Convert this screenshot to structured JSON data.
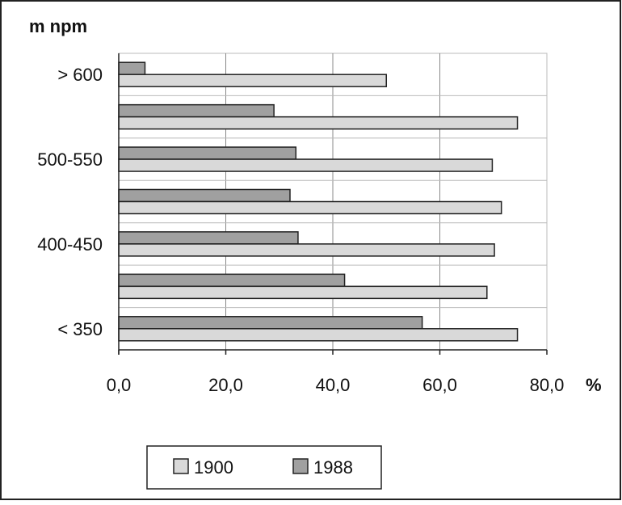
{
  "chart_data": {
    "type": "bar",
    "orientation": "horizontal",
    "ylabel": "m npm",
    "xlabel_unit": "%",
    "categories": [
      "< 350",
      "",
      "400-450",
      "",
      "500-550",
      "",
      "> 600"
    ],
    "category_labels_shown": [
      "< 350",
      "400-450",
      "500-550",
      "> 600"
    ],
    "series": [
      {
        "name": "1900",
        "values": [
          74.5,
          68.8,
          70.2,
          71.5,
          69.8,
          74.5,
          50.0
        ],
        "color": "#d9d9d9"
      },
      {
        "name": "1988",
        "values": [
          56.7,
          42.2,
          33.5,
          32.0,
          33.1,
          29.0,
          4.9
        ],
        "color": "#a0a0a0"
      }
    ],
    "xlim": [
      0,
      80
    ],
    "xticks": [
      "0,0",
      "20,0",
      "40,0",
      "60,0",
      "80,0"
    ],
    "grid": true,
    "legend_position": "bottom"
  }
}
